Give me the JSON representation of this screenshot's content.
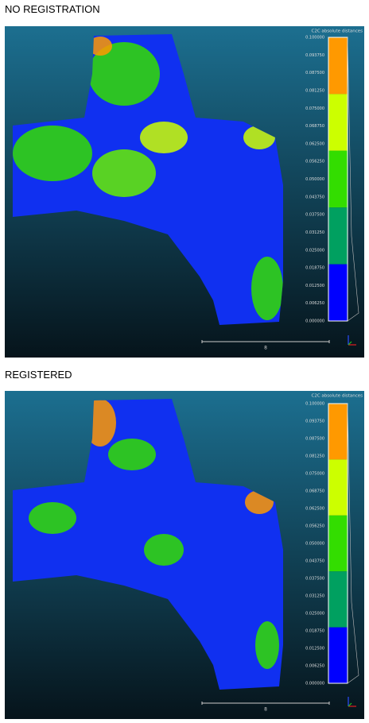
{
  "panels": [
    {
      "heading": "NO REGISTRATION",
      "scale_title": "C2C absolute distances",
      "scale_labels": [
        "0.100000",
        "0.093750",
        "0.087500",
        "0.081250",
        "0.075000",
        "0.068750",
        "0.062500",
        "0.056250",
        "0.050000",
        "0.043750",
        "0.037500",
        "0.031250",
        "0.025000",
        "0.018750",
        "0.012500",
        "0.006250",
        "0.000000"
      ],
      "scale_bar_label": "8"
    },
    {
      "heading": "REGISTERED",
      "scale_title": "C2C absolute distances",
      "scale_labels": [
        "0.100000",
        "0.093750",
        "0.087500",
        "0.081250",
        "0.075000",
        "0.068750",
        "0.062500",
        "0.056250",
        "0.050000",
        "0.043750",
        "0.037500",
        "0.031250",
        "0.025000",
        "0.018750",
        "0.012500",
        "0.006250",
        "0.000000"
      ],
      "scale_bar_label": "8"
    }
  ]
}
